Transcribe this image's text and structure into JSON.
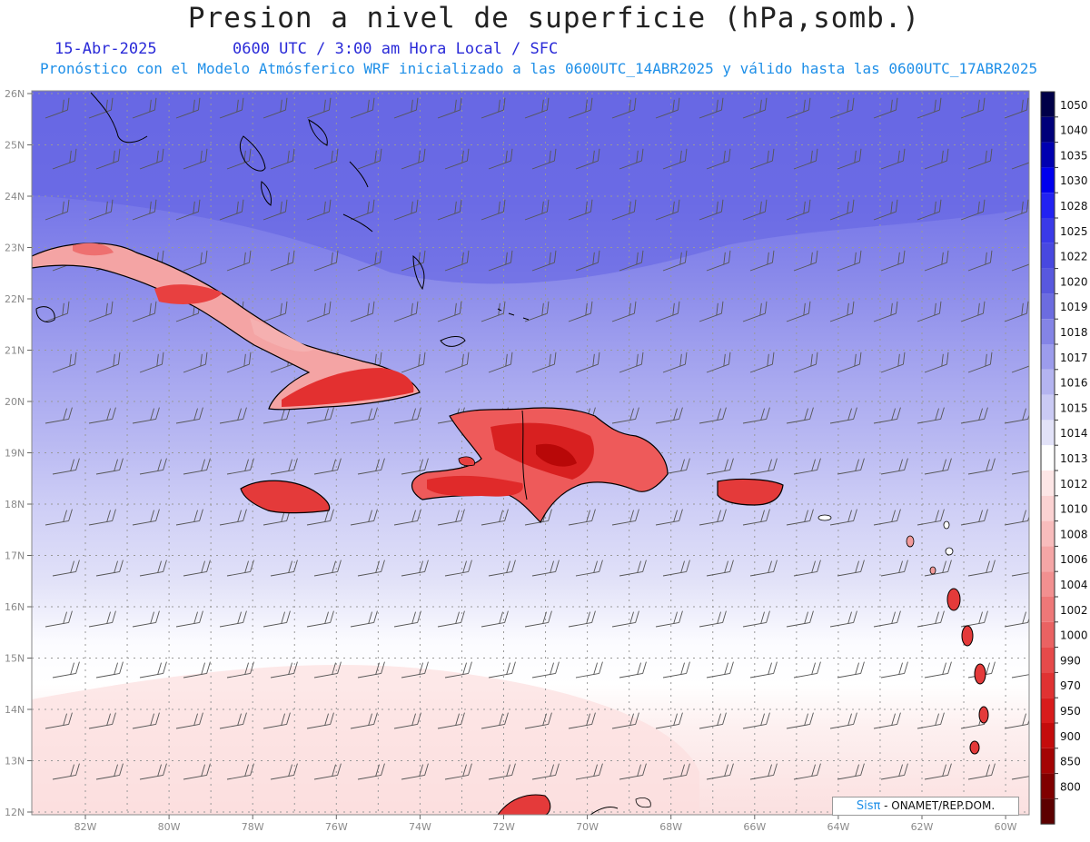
{
  "title": "Presion a nivel de superficie (hPa,somb.)",
  "date": "15-Abr-2025",
  "time": "0600 UTC / 3:00 am Hora Local / SFC",
  "subtitle": "Pronóstico con el Modelo Atmósferico WRF inicializado a las 0600UTC_14ABR2025 y válido hasta las  0600UTC_17ABR2025",
  "credit": {
    "brand": "Sisπ",
    "text": " - ONAMET/REP.DOM."
  },
  "map": {
    "lat_labels": [
      "26N",
      "25N",
      "24N",
      "23N",
      "22N",
      "21N",
      "20N",
      "19N",
      "18N",
      "17N",
      "16N",
      "15N",
      "14N",
      "13N",
      "12N"
    ],
    "lon_labels": [
      "82W",
      "80W",
      "78W",
      "76W",
      "74W",
      "72W",
      "70W",
      "68W",
      "66W",
      "64W",
      "62W",
      "60W"
    ]
  },
  "colorbar": {
    "levels": [
      "1050",
      "1040",
      "1035",
      "1030",
      "1028",
      "1025",
      "1022",
      "1020",
      "1019",
      "1018",
      "1017",
      "1016",
      "1015",
      "1014",
      "1013",
      "1012",
      "1010",
      "1008",
      "1006",
      "1004",
      "1002",
      "1000",
      "990",
      "970",
      "950",
      "900",
      "850",
      "800"
    ],
    "colors": [
      "#000048",
      "#00007a",
      "#0000b0",
      "#0000ee",
      "#2222f2",
      "#3a3ae8",
      "#4848e0",
      "#5858de",
      "#6c6ce0",
      "#8484e6",
      "#9c9cec",
      "#b4b4f0",
      "#cacaf4",
      "#e2e2f8",
      "#ffffff",
      "#fde6e6",
      "#fbd2d2",
      "#f8bcbc",
      "#f5a6a6",
      "#f29090",
      "#ee7878",
      "#ea6262",
      "#e64a4a",
      "#e03232",
      "#d81c1c",
      "#c40c0c",
      "#a40404",
      "#800000",
      "#5c0000"
    ]
  }
}
